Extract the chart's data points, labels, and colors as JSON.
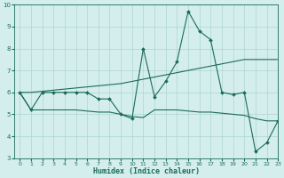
{
  "xlabel": "Humidex (Indice chaleur)",
  "x": [
    0,
    1,
    2,
    3,
    4,
    5,
    6,
    7,
    8,
    9,
    10,
    11,
    12,
    13,
    14,
    15,
    16,
    17,
    18,
    19,
    20,
    21,
    22,
    23
  ],
  "line1": [
    6.0,
    5.2,
    6.0,
    6.0,
    6.0,
    6.0,
    6.0,
    5.7,
    5.7,
    5.0,
    4.8,
    8.0,
    5.8,
    6.5,
    7.4,
    9.7,
    8.8,
    8.4,
    6.0,
    5.9,
    6.0,
    3.3,
    3.7,
    4.7
  ],
  "line2": [
    6.0,
    6.0,
    6.05,
    6.1,
    6.15,
    6.2,
    6.25,
    6.3,
    6.35,
    6.4,
    6.5,
    6.6,
    6.7,
    6.8,
    6.9,
    7.0,
    7.1,
    7.2,
    7.3,
    7.4,
    7.5,
    7.5,
    7.5,
    7.5
  ],
  "line3": [
    6.0,
    5.2,
    5.2,
    5.2,
    5.2,
    5.2,
    5.15,
    5.1,
    5.1,
    5.0,
    4.9,
    4.85,
    5.2,
    5.2,
    5.2,
    5.15,
    5.1,
    5.1,
    5.05,
    5.0,
    4.95,
    4.8,
    4.7,
    4.7
  ],
  "color": "#1a6b5a",
  "bg_color": "#d4eeee",
  "grid_color": "#aed4d4",
  "ylim": [
    3,
    10
  ],
  "xlim": [
    -0.5,
    23
  ],
  "yticks": [
    3,
    4,
    5,
    6,
    7,
    8,
    9,
    10
  ],
  "xticks": [
    0,
    1,
    2,
    3,
    4,
    5,
    6,
    7,
    8,
    9,
    10,
    11,
    12,
    13,
    14,
    15,
    16,
    17,
    18,
    19,
    20,
    21,
    22,
    23
  ]
}
